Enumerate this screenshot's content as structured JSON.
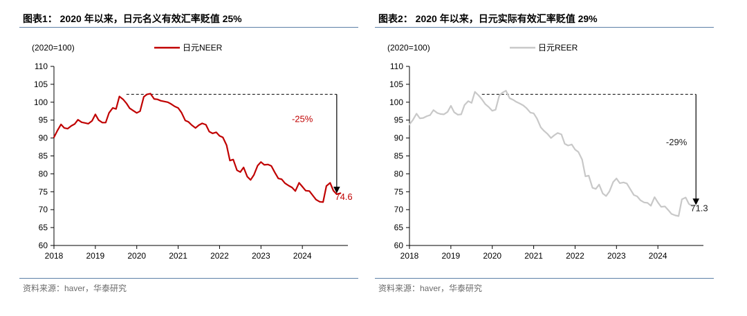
{
  "charts": [
    {
      "figure_title": "图表1： 2020 年以来，日元名义有效汇率贬值 25%",
      "source": "资料来源：haver，华泰研究",
      "chart_data": {
        "type": "line",
        "title": "图表1： 2020 年以来，日元名义有效汇率贬值 25%",
        "unit_label": "(2020=100)",
        "ylim": [
          60,
          110
        ],
        "yticks": [
          60,
          65,
          70,
          75,
          80,
          85,
          90,
          95,
          100,
          105,
          110
        ],
        "xlim": [
          2018,
          2025.1
        ],
        "xticks": [
          "2018",
          "2019",
          "2020",
          "2021",
          "2022",
          "2023",
          "2024"
        ],
        "grid": false,
        "legend_position": "top-center",
        "series": [
          {
            "name": "日元NEER",
            "color": "#c00000",
            "x": [
              2018.0,
              2018.08,
              2018.17,
              2018.25,
              2018.33,
              2018.42,
              2018.5,
              2018.58,
              2018.67,
              2018.75,
              2018.83,
              2018.92,
              2019.0,
              2019.08,
              2019.17,
              2019.25,
              2019.33,
              2019.42,
              2019.5,
              2019.58,
              2019.67,
              2019.75,
              2019.83,
              2019.92,
              2020.0,
              2020.08,
              2020.17,
              2020.25,
              2020.33,
              2020.42,
              2020.5,
              2020.58,
              2020.67,
              2020.75,
              2020.83,
              2020.92,
              2021.0,
              2021.08,
              2021.17,
              2021.25,
              2021.33,
              2021.42,
              2021.5,
              2021.58,
              2021.67,
              2021.75,
              2021.83,
              2021.92,
              2022.0,
              2022.08,
              2022.17,
              2022.25,
              2022.33,
              2022.42,
              2022.5,
              2022.58,
              2022.67,
              2022.75,
              2022.83,
              2022.92,
              2023.0,
              2023.08,
              2023.17,
              2023.25,
              2023.33,
              2023.42,
              2023.5,
              2023.58,
              2023.67,
              2023.75,
              2023.83,
              2023.92,
              2024.0,
              2024.08,
              2024.17,
              2024.25,
              2024.33,
              2024.42,
              2024.5,
              2024.58,
              2024.67,
              2024.75,
              2024.83,
              2024.92
            ],
            "values": [
              90.2,
              92.0,
              93.8,
              92.8,
              92.6,
              93.4,
              93.9,
              95.1,
              94.4,
              94.2,
              94.0,
              94.8,
              96.6,
              95.0,
              94.3,
              94.3,
              97.0,
              98.4,
              98.1,
              101.6,
              100.8,
              99.7,
              98.3,
              97.6,
              97.0,
              97.5,
              101.5,
              102.2,
              102.4,
              100.9,
              100.8,
              100.4,
              100.2,
              100.0,
              99.5,
              98.8,
              98.4,
              97.1,
              94.9,
              94.5,
              93.6,
              92.8,
              93.6,
              94.1,
              93.7,
              91.8,
              91.3,
              91.6,
              90.6,
              90.2,
              88.0,
              83.7,
              84.0,
              81.0,
              80.5,
              81.8,
              79.2,
              78.3,
              79.7,
              82.3,
              83.3,
              82.5,
              82.6,
              82.2,
              80.5,
              78.7,
              78.5,
              77.4,
              76.7,
              76.2,
              75.2,
              77.5,
              76.4,
              75.3,
              75.2,
              74.0,
              72.8,
              72.2,
              72.1,
              76.6,
              77.5,
              75.3,
              74.3,
              74.6
            ]
          }
        ],
        "reference_line": {
          "y": 102.2,
          "x_start": 2019.75,
          "x_end": 2024.83
        },
        "arrow": {
          "x": 2024.83,
          "y_from": 102.2,
          "y_to": 74.6
        },
        "annotations": [
          {
            "text": "-25%",
            "x": 2024.0,
            "y": 94.5,
            "color": "#c00000"
          },
          {
            "text": "74.6",
            "x": 2025.0,
            "y": 72.7,
            "color": "#c00000"
          }
        ]
      }
    },
    {
      "figure_title": "图表2： 2020 年以来，日元实际有效汇率贬值 29%",
      "source": "资料来源：haver，华泰研究",
      "chart_data": {
        "type": "line",
        "title": "图表2： 2020 年以来，日元实际有效汇率贬值 29%",
        "unit_label": "(2020=100)",
        "ylim": [
          60,
          110
        ],
        "yticks": [
          60,
          65,
          70,
          75,
          80,
          85,
          90,
          95,
          100,
          105,
          110
        ],
        "xlim": [
          2018,
          2025.1
        ],
        "xticks": [
          "2018",
          "2019",
          "2020",
          "2021",
          "2022",
          "2023",
          "2024"
        ],
        "grid": false,
        "legend_position": "top-center",
        "series": [
          {
            "name": "日元REER",
            "color": "#c8c8c8",
            "x": [
              2018.0,
              2018.08,
              2018.17,
              2018.25,
              2018.33,
              2018.42,
              2018.5,
              2018.58,
              2018.67,
              2018.75,
              2018.83,
              2018.92,
              2019.0,
              2019.08,
              2019.17,
              2019.25,
              2019.33,
              2019.42,
              2019.5,
              2019.58,
              2019.67,
              2019.75,
              2019.83,
              2019.92,
              2020.0,
              2020.08,
              2020.17,
              2020.25,
              2020.33,
              2020.42,
              2020.5,
              2020.58,
              2020.67,
              2020.75,
              2020.83,
              2020.92,
              2021.0,
              2021.08,
              2021.17,
              2021.25,
              2021.33,
              2021.42,
              2021.5,
              2021.58,
              2021.67,
              2021.75,
              2021.83,
              2021.92,
              2022.0,
              2022.08,
              2022.17,
              2022.25,
              2022.33,
              2022.42,
              2022.5,
              2022.58,
              2022.67,
              2022.75,
              2022.83,
              2022.92,
              2023.0,
              2023.08,
              2023.17,
              2023.25,
              2023.33,
              2023.42,
              2023.5,
              2023.58,
              2023.67,
              2023.75,
              2023.83,
              2023.92,
              2024.0,
              2024.08,
              2024.17,
              2024.25,
              2024.33,
              2024.42,
              2024.5,
              2024.58,
              2024.67,
              2024.75,
              2024.83,
              2024.92
            ],
            "values": [
              93.8,
              95.0,
              96.8,
              95.5,
              95.6,
              96.1,
              96.4,
              97.8,
              97.0,
              96.7,
              96.6,
              97.3,
              99.0,
              97.2,
              96.5,
              96.6,
              99.2,
              100.3,
              99.8,
              102.9,
              101.9,
              100.8,
              99.5,
              98.6,
              97.6,
              97.9,
              101.9,
              102.7,
              103.2,
              101.1,
              100.7,
              100.1,
              99.6,
              99.1,
              98.3,
              97.1,
              96.9,
              95.4,
              93.0,
              92.0,
              91.2,
              90.0,
              90.8,
              91.4,
              91.0,
              88.4,
              87.9,
              88.2,
              86.8,
              86.1,
              84.0,
              79.3,
              79.5,
              76.1,
              75.8,
              77.0,
              74.5,
              73.8,
              75.1,
              77.7,
              78.7,
              77.4,
              77.6,
              77.3,
              75.8,
              74.1,
              73.7,
              72.6,
              72.0,
              71.9,
              71.1,
              73.5,
              72.0,
              70.8,
              70.9,
              69.9,
              68.8,
              68.4,
              68.2,
              72.9,
              73.4,
              71.6,
              71.0,
              71.3
            ]
          }
        ],
        "reference_line": {
          "y": 102.2,
          "x_start": 2019.75,
          "x_end": 2024.92
        },
        "arrow": {
          "x": 2024.92,
          "y_from": 102.2,
          "y_to": 71.3
        },
        "annotations": [
          {
            "text": "-29%",
            "x": 2024.45,
            "y": 88.0,
            "color": "#222222"
          },
          {
            "text": "71.3",
            "x": 2025.0,
            "y": 69.6,
            "color": "#222222"
          }
        ]
      }
    }
  ]
}
